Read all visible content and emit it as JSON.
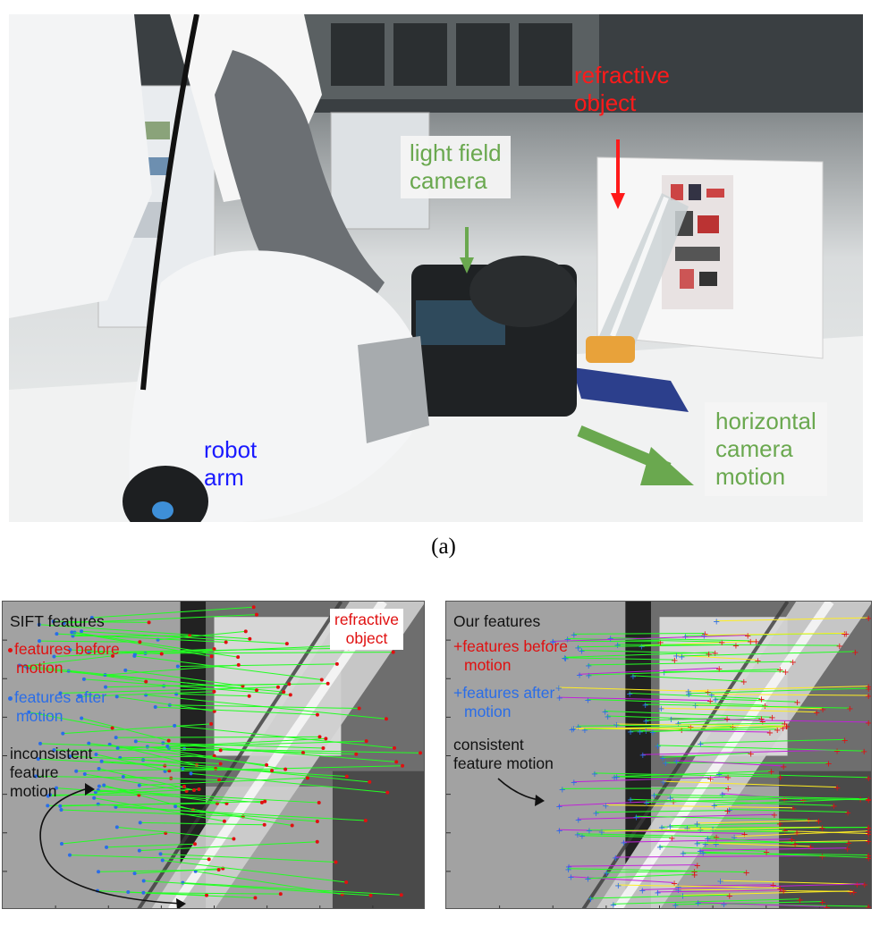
{
  "figure_a": {
    "caption": "(a)",
    "labels": {
      "refractive_object": [
        "refractive",
        "object"
      ],
      "light_field_camera": [
        "light field",
        "camera"
      ],
      "robot_arm": [
        "robot",
        "arm"
      ],
      "horizontal_motion": [
        "horizontal",
        "camera",
        "motion"
      ]
    },
    "colors": {
      "red": "#ff1a1a",
      "green": "#6aa84f",
      "blue": "#1a1aff"
    }
  },
  "figure_b_left": {
    "title": "SIFT features",
    "legend_before": [
      "features before",
      "motion"
    ],
    "legend_after": [
      "features after",
      "motion"
    ],
    "object_label": [
      "refractive",
      "object"
    ],
    "annotation": [
      "inconsistent",
      "feature",
      "motion"
    ]
  },
  "figure_b_right": {
    "title": "Our features",
    "legend_before": [
      "features before",
      "motion"
    ],
    "legend_after": [
      "features after",
      "motion"
    ],
    "annotation": [
      "consistent",
      "feature motion"
    ]
  }
}
